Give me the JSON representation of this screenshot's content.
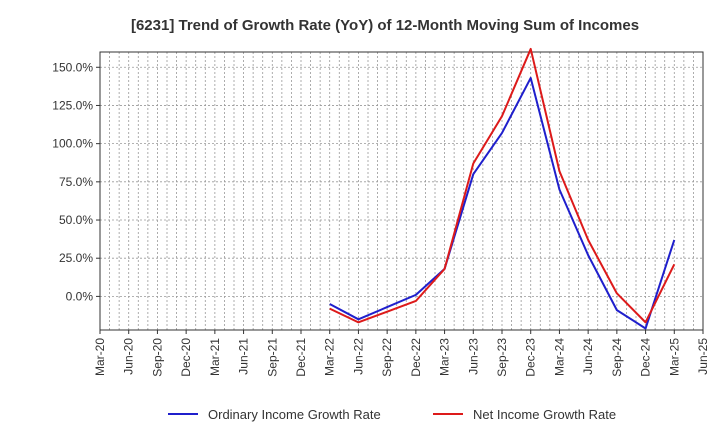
{
  "chart_data": {
    "type": "line",
    "title": "[6231]  Trend of Growth Rate (YoY) of 12-Month Moving Sum of Incomes",
    "xlabel": "",
    "ylabel": "",
    "x": [
      "Mar-20",
      "Jun-20",
      "Sep-20",
      "Dec-20",
      "Mar-21",
      "Jun-21",
      "Sep-21",
      "Dec-21",
      "Mar-22",
      "Jun-22",
      "Sep-22",
      "Dec-22",
      "Mar-23",
      "Jun-23",
      "Sep-23",
      "Dec-23",
      "Mar-24",
      "Jun-24",
      "Sep-24",
      "Dec-24",
      "Mar-25",
      "Jun-25"
    ],
    "ylim": [
      -22,
      160
    ],
    "yticks": [
      0,
      25,
      50,
      75,
      100,
      125,
      150
    ],
    "ytick_labels": [
      "0.0%",
      "25.0%",
      "50.0%",
      "75.0%",
      "100.0%",
      "125.0%",
      "150.0%"
    ],
    "grid": true,
    "legend_position": "bottom",
    "series": [
      {
        "name": "Ordinary Income Growth Rate",
        "color": "#1f1fcc",
        "values": [
          null,
          null,
          null,
          null,
          null,
          null,
          null,
          null,
          -5,
          -15,
          -7,
          1,
          18,
          80,
          107,
          143,
          70,
          27,
          -9,
          -21,
          37,
          null
        ]
      },
      {
        "name": "Net Income Growth Rate",
        "color": "#dd1a1a",
        "values": [
          null,
          null,
          null,
          null,
          null,
          null,
          null,
          null,
          -8,
          -17,
          -10,
          -3,
          18,
          87,
          118,
          162,
          82,
          37,
          2,
          -17,
          21,
          null
        ]
      }
    ]
  }
}
